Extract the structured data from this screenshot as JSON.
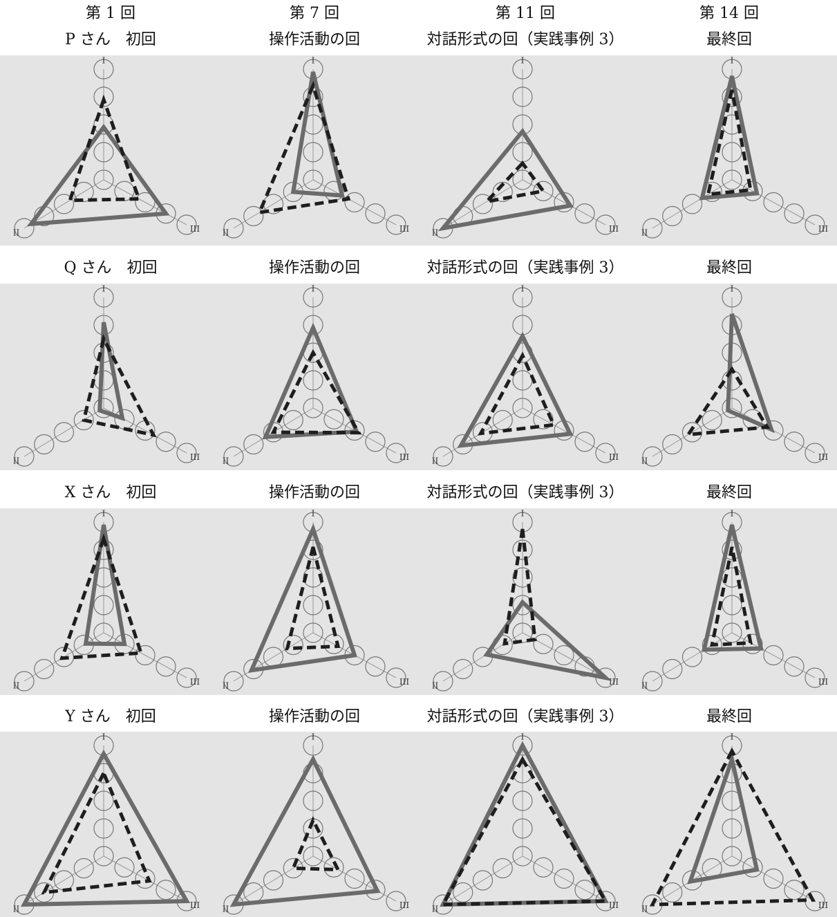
{
  "columns": [
    "第 1 回",
    "第 7 回",
    "第 11 回",
    "第 14 回"
  ],
  "axis_labels": [
    "I",
    "II",
    "III"
  ],
  "level_range": [
    0,
    4
  ],
  "rows": [
    {
      "panels": [
        {
          "title": "P さん　初回",
          "solid": [
            1.9,
            3.65,
            3
          ],
          "dashed": [
            2.9,
            1.7,
            1.7
          ]
        },
        {
          "title": "操作活動の回",
          "solid": [
            3.9,
            1,
            1.4
          ],
          "dashed": [
            3.4,
            2.7,
            1.7
          ]
        },
        {
          "title": "対話形式の回（実践事例 3）",
          "solid": [
            1.75,
            4,
            2.3
          ],
          "dashed": [
            0.6,
            1.8,
            1
          ]
        },
        {
          "title": "最終回",
          "solid": [
            3.75,
            1.5,
            1.2
          ],
          "dashed": [
            3.25,
            1.2,
            0.9
          ]
        }
      ]
    },
    {
      "panels": [
        {
          "title": "Q さん　初回",
          "solid": [
            3.1,
            0.2,
            0.9
          ],
          "dashed": [
            2.5,
            1,
            2.4
          ]
        },
        {
          "title": "操作活動の回",
          "solid": [
            2.9,
            2.4,
            2.1
          ],
          "dashed": [
            2,
            2,
            2.2
          ]
        },
        {
          "title": "対話形式の回（実践事例 3）",
          "solid": [
            2.6,
            3.1,
            2.3
          ],
          "dashed": [
            1.9,
            2.1,
            1.5
          ]
        },
        {
          "title": "最終回",
          "solid": [
            3.4,
            0.2,
            1.9
          ],
          "dashed": [
            1.4,
            2.2,
            1.7
          ]
        }
      ]
    },
    {
      "panels": [
        {
          "title": "X さん　初回",
          "solid": [
            3.9,
            0.9,
            1
          ],
          "dashed": [
            3.4,
            2.1,
            1.8
          ]
        },
        {
          "title": "操作活動の回",
          "solid": [
            3.75,
            3.1,
            2
          ],
          "dashed": [
            3.1,
            1.3,
            1.2
          ]
        },
        {
          "title": "対話形式の回（実践事例 3）",
          "solid": [
            1.1,
            1.8,
            4
          ],
          "dashed": [
            3.75,
            0.9,
            0.6
          ]
        },
        {
          "title": "最終回",
          "solid": [
            3.9,
            1.4,
            1.4
          ],
          "dashed": [
            3.1,
            1,
            0.9
          ]
        }
      ]
    },
    {
      "panels": [
        {
          "title": "Y さん　初回",
          "solid": [
            3.7,
            4,
            4
          ],
          "dashed": [
            3,
            3,
            2.2
          ]
        },
        {
          "title": "操作活動の回",
          "solid": [
            3.5,
            4,
            3.1
          ],
          "dashed": [
            1.3,
            1,
            1.2
          ]
        },
        {
          "title": "対話形式の回（実践事例 3）",
          "solid": [
            4,
            4,
            4
          ],
          "dashed": [
            3.5,
            4,
            4
          ]
        },
        {
          "title": "最終回",
          "solid": [
            3.5,
            2.1,
            1.2
          ],
          "dashed": [
            3.8,
            4,
            3.9
          ]
        }
      ]
    }
  ]
}
